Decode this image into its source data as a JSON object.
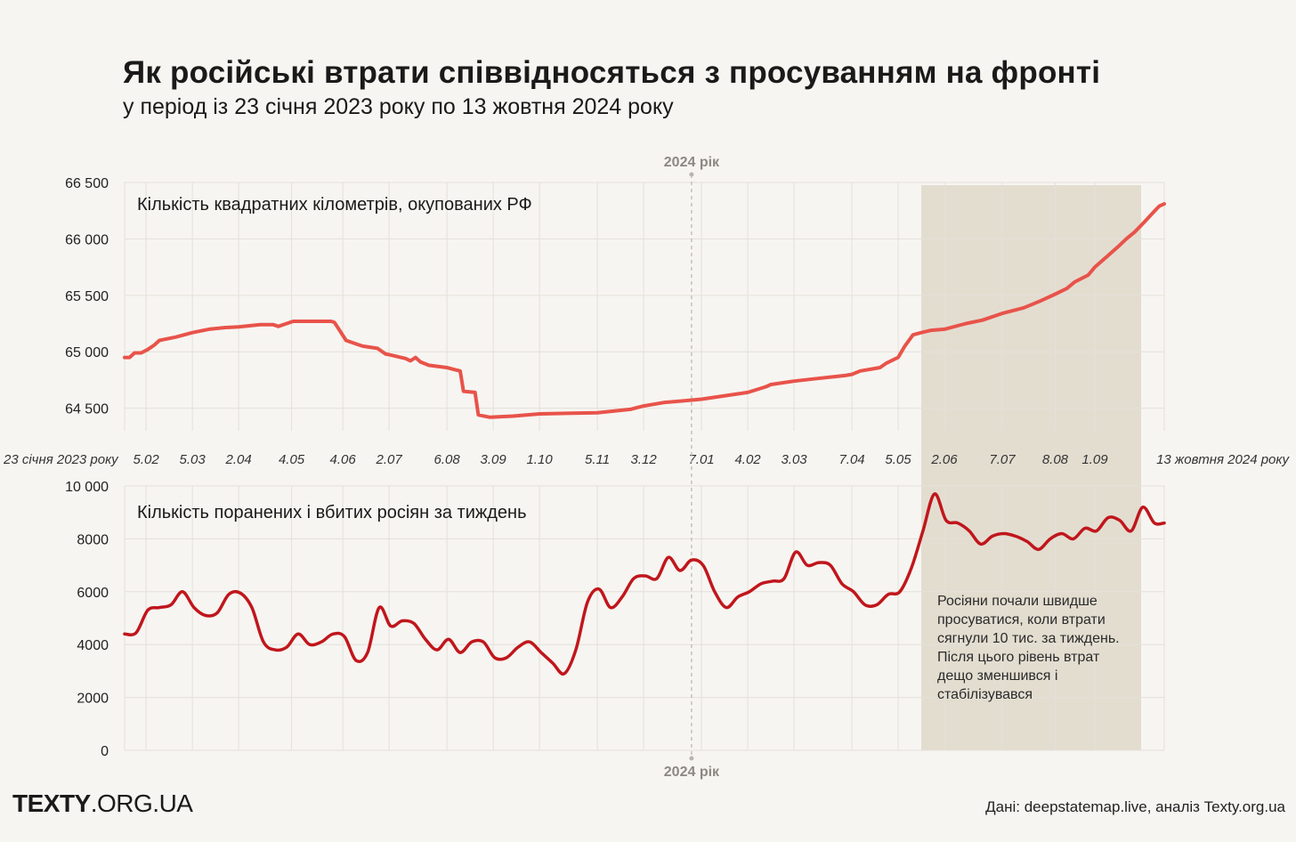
{
  "header": {
    "title": "Як російські втрати співвідносяться з просуванням на фронті",
    "subtitle": "у період із 23 січня 2023 року по 13 жовтня 2024 року"
  },
  "footer": {
    "logo_bold": "TEXTY",
    "logo_rest": ".ORG.UA",
    "source": "Дані: deepstatemap.live, аналіз Texty.org.ua"
  },
  "colors": {
    "background": "#f7f5f1",
    "territory_line": "#e8534a",
    "losses_line": "#c0161c",
    "highlight": "#e3ddd0",
    "grid": "#e4e0da"
  },
  "chart_data": [
    {
      "type": "line",
      "title": "Кількість квадратних кілометрів, окупованих РФ",
      "x_unit": "date",
      "ylim": [
        64300,
        66500
      ],
      "yticks": [
        64500,
        65000,
        65500,
        66000,
        66500
      ],
      "ytick_labels": [
        "64 500",
        "65 000",
        "65 500",
        "66 000",
        "66 500"
      ],
      "xticks": [
        {
          "date": "2023-01-23",
          "label": "23 січня 2023 року"
        },
        {
          "date": "2023-02-05",
          "label": "5.02"
        },
        {
          "date": "2023-03-05",
          "label": "5.03"
        },
        {
          "date": "2023-04-02",
          "label": "2.04"
        },
        {
          "date": "2023-05-04",
          "label": "4.05"
        },
        {
          "date": "2023-06-04",
          "label": "4.06"
        },
        {
          "date": "2023-07-02",
          "label": "2.07"
        },
        {
          "date": "2023-08-06",
          "label": "6.08"
        },
        {
          "date": "2023-09-03",
          "label": "3.09"
        },
        {
          "date": "2023-10-01",
          "label": "1.10"
        },
        {
          "date": "2023-11-05",
          "label": "5.11"
        },
        {
          "date": "2023-12-03",
          "label": "3.12"
        },
        {
          "date": "2024-01-07",
          "label": "7.01"
        },
        {
          "date": "2024-02-04",
          "label": "4.02"
        },
        {
          "date": "2024-03-03",
          "label": "3.03"
        },
        {
          "date": "2024-04-07",
          "label": "7.04"
        },
        {
          "date": "2024-05-05",
          "label": "5.05"
        },
        {
          "date": "2024-06-02",
          "label": "2.06"
        },
        {
          "date": "2024-07-07",
          "label": "7.07"
        },
        {
          "date": "2024-08-08",
          "label": "8.08"
        },
        {
          "date": "2024-09-01",
          "label": "1.09"
        },
        {
          "date": "2024-10-13",
          "label": "13 жовтня 2024 року"
        }
      ],
      "year_marker": {
        "date": "2024-01-01",
        "label": "2024 рік"
      },
      "highlight_range": [
        "2024-05-19",
        "2024-09-29"
      ],
      "series": [
        {
          "x": [
            "2023-01-23",
            "2023-01-26",
            "2023-01-29",
            "2023-02-02",
            "2023-02-06",
            "2023-02-10",
            "2023-02-13",
            "2023-02-16",
            "2023-02-23",
            "2023-03-05",
            "2023-03-15",
            "2023-03-25",
            "2023-04-02",
            "2023-04-15",
            "2023-04-23",
            "2023-04-26",
            "2023-05-05",
            "2023-05-20",
            "2023-05-28",
            "2023-05-30",
            "2023-06-06",
            "2023-06-12",
            "2023-06-16",
            "2023-06-25",
            "2023-06-30",
            "2023-07-02",
            "2023-07-12",
            "2023-07-15",
            "2023-07-18",
            "2023-07-21",
            "2023-07-26",
            "2023-08-06",
            "2023-08-14",
            "2023-08-16",
            "2023-08-23",
            "2023-08-25",
            "2023-09-01",
            "2023-09-15",
            "2023-10-01",
            "2023-11-05",
            "2023-11-25",
            "2023-12-03",
            "2023-12-15",
            "2024-01-07",
            "2024-02-04",
            "2024-02-15",
            "2024-02-18",
            "2024-03-03",
            "2024-03-15",
            "2024-04-03",
            "2024-04-07",
            "2024-04-12",
            "2024-04-24",
            "2024-04-28",
            "2024-05-05",
            "2024-05-09",
            "2024-05-14",
            "2024-05-19",
            "2024-05-25",
            "2024-06-02",
            "2024-06-15",
            "2024-06-25",
            "2024-07-07",
            "2024-07-20",
            "2024-07-30",
            "2024-08-08",
            "2024-08-15",
            "2024-08-20",
            "2024-08-28",
            "2024-09-01",
            "2024-09-08",
            "2024-09-15",
            "2024-09-20",
            "2024-09-25",
            "2024-10-01",
            "2024-10-08",
            "2024-10-10",
            "2024-10-13"
          ],
          "y": [
            64950,
            64950,
            64990,
            64990,
            65020,
            65060,
            65100,
            65110,
            65130,
            65170,
            65200,
            65215,
            65220,
            65240,
            65240,
            65225,
            65270,
            65270,
            65270,
            65260,
            65100,
            65070,
            65050,
            65030,
            64980,
            64975,
            64940,
            64920,
            64950,
            64910,
            64880,
            64860,
            64830,
            64650,
            64640,
            64440,
            64420,
            64430,
            64450,
            64460,
            64490,
            64520,
            64550,
            64580,
            64640,
            64690,
            64710,
            64740,
            64760,
            64790,
            64800,
            64830,
            64860,
            64900,
            64950,
            65050,
            65150,
            65170,
            65190,
            65200,
            65250,
            65280,
            65340,
            65390,
            65450,
            65510,
            65560,
            65620,
            65680,
            65750,
            65840,
            65930,
            66000,
            66060,
            66150,
            66260,
            66290,
            66310
          ]
        }
      ]
    },
    {
      "type": "line",
      "title": "Кількість поранених і вбитих росіян за тиждень",
      "x_unit": "date",
      "ylim": [
        0,
        10000
      ],
      "yticks": [
        0,
        2000,
        4000,
        6000,
        8000,
        10000
      ],
      "ytick_labels": [
        "0",
        "2000",
        "4000",
        "6000",
        "8000",
        "10 000"
      ],
      "year_marker": {
        "date": "2024-01-01",
        "label": "2024 рік"
      },
      "highlight_range": [
        "2024-05-19",
        "2024-09-29"
      ],
      "annotation": "Росіяни почали швидше просуватися, коли втрати сягнули 10 тис. за тиждень. Після цього рівень втрат дещо зменшився і стабілізувався",
      "series": [
        {
          "x": [
            "2023-01-23",
            "2023-01-30",
            "2023-02-06",
            "2023-02-13",
            "2023-02-20",
            "2023-02-27",
            "2023-03-06",
            "2023-03-13",
            "2023-03-20",
            "2023-03-27",
            "2023-04-03",
            "2023-04-10",
            "2023-04-17",
            "2023-04-24",
            "2023-05-01",
            "2023-05-08",
            "2023-05-15",
            "2023-05-22",
            "2023-05-29",
            "2023-06-05",
            "2023-06-12",
            "2023-06-19",
            "2023-06-26",
            "2023-07-03",
            "2023-07-10",
            "2023-07-17",
            "2023-07-24",
            "2023-07-31",
            "2023-08-07",
            "2023-08-14",
            "2023-08-21",
            "2023-08-28",
            "2023-09-04",
            "2023-09-11",
            "2023-09-18",
            "2023-09-25",
            "2023-10-02",
            "2023-10-09",
            "2023-10-16",
            "2023-10-23",
            "2023-10-30",
            "2023-11-06",
            "2023-11-13",
            "2023-11-20",
            "2023-11-27",
            "2023-12-04",
            "2023-12-11",
            "2023-12-18",
            "2023-12-25",
            "2024-01-01",
            "2024-01-08",
            "2024-01-15",
            "2024-01-22",
            "2024-01-29",
            "2024-02-05",
            "2024-02-12",
            "2024-02-19",
            "2024-02-26",
            "2024-03-04",
            "2024-03-11",
            "2024-03-18",
            "2024-03-25",
            "2024-04-01",
            "2024-04-08",
            "2024-04-15",
            "2024-04-22",
            "2024-04-29",
            "2024-05-06",
            "2024-05-13",
            "2024-05-20",
            "2024-05-27",
            "2024-06-03",
            "2024-06-10",
            "2024-06-17",
            "2024-06-24",
            "2024-07-01",
            "2024-07-08",
            "2024-07-15",
            "2024-07-22",
            "2024-07-29",
            "2024-08-05",
            "2024-08-12",
            "2024-08-19",
            "2024-08-26",
            "2024-09-02",
            "2024-09-09",
            "2024-09-16",
            "2024-09-23",
            "2024-09-30",
            "2024-10-07",
            "2024-10-13"
          ],
          "y": [
            4400,
            4450,
            5300,
            5400,
            5500,
            6000,
            5400,
            5100,
            5200,
            5900,
            5950,
            5400,
            4100,
            3800,
            3900,
            4400,
            4000,
            4100,
            4400,
            4300,
            3400,
            3700,
            5400,
            4700,
            4900,
            4800,
            4200,
            3800,
            4200,
            3700,
            4100,
            4100,
            3500,
            3500,
            3900,
            4100,
            3700,
            3300,
            2900,
            3800,
            5600,
            6100,
            5400,
            5800,
            6500,
            6600,
            6500,
            7300,
            6800,
            7200,
            7000,
            6000,
            5400,
            5800,
            6000,
            6300,
            6400,
            6500,
            7500,
            7000,
            7100,
            7000,
            6300,
            6000,
            5500,
            5500,
            5900,
            6000,
            6900,
            8300,
            9700,
            8700,
            8600,
            8300,
            7800,
            8100,
            8200,
            8100,
            7900,
            7600,
            8000,
            8200,
            8000,
            8400,
            8300,
            8800,
            8700,
            8300,
            9200,
            8600,
            8600
          ]
        }
      ]
    }
  ]
}
